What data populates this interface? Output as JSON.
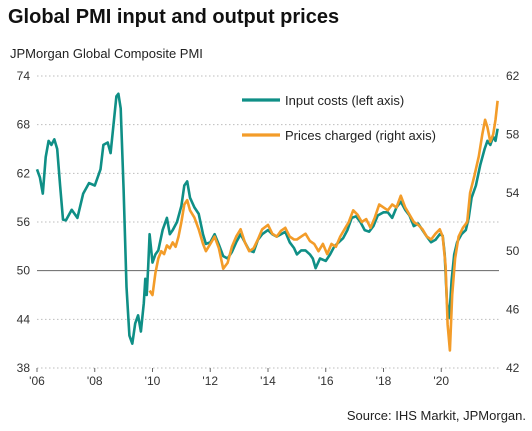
{
  "header": {
    "title": "Global PMI input and output prices",
    "subtitle": "JPMorgan  Global  Composite  PMI"
  },
  "footer": {
    "source": "Source: IHS Markit, JPMorgan."
  },
  "chart_data": {
    "type": "line",
    "title": "Global PMI input and output prices",
    "subtitle": "JPMorgan  Global  Composite  PMI",
    "x_range": [
      2006,
      2022
    ],
    "x_ticks": [
      "'06",
      "'08",
      "'10",
      "'12",
      "'14",
      "'16",
      "'18",
      "'20"
    ],
    "x_tick_values": [
      2006,
      2008,
      2010,
      2012,
      2014,
      2016,
      2018,
      2020
    ],
    "y_left": {
      "range": [
        38,
        74
      ],
      "ticks": [
        38,
        44,
        50,
        56,
        62,
        68,
        74
      ]
    },
    "y_right": {
      "range": [
        42,
        62
      ],
      "ticks": [
        42,
        46,
        50,
        54,
        58,
        62
      ]
    },
    "reference_line": {
      "axis": "left",
      "value": 50
    },
    "grid": "horizontal dotted",
    "legend": {
      "placement": "top-right"
    },
    "series": [
      {
        "name": "Input costs (left axis)",
        "axis": "left",
        "color": "#0f8f86",
        "points": [
          [
            2006.0,
            62.5
          ],
          [
            2006.1,
            61.5
          ],
          [
            2006.2,
            59.5
          ],
          [
            2006.3,
            64
          ],
          [
            2006.4,
            66
          ],
          [
            2006.5,
            65.5
          ],
          [
            2006.6,
            66.2
          ],
          [
            2006.7,
            65
          ],
          [
            2006.8,
            60.5
          ],
          [
            2006.9,
            56.3
          ],
          [
            2007.0,
            56.2
          ],
          [
            2007.2,
            57.5
          ],
          [
            2007.4,
            56.5
          ],
          [
            2007.6,
            59.5
          ],
          [
            2007.8,
            60.8
          ],
          [
            2008.0,
            60.5
          ],
          [
            2008.2,
            62.5
          ],
          [
            2008.3,
            65.5
          ],
          [
            2008.45,
            65.8
          ],
          [
            2008.55,
            64.5
          ],
          [
            2008.65,
            68
          ],
          [
            2008.75,
            71.5
          ],
          [
            2008.82,
            71.8
          ],
          [
            2008.9,
            70
          ],
          [
            2009.0,
            60
          ],
          [
            2009.1,
            48
          ],
          [
            2009.2,
            42
          ],
          [
            2009.3,
            41
          ],
          [
            2009.4,
            43.5
          ],
          [
            2009.5,
            44.5
          ],
          [
            2009.6,
            42.5
          ],
          [
            2009.7,
            46
          ],
          [
            2009.75,
            49
          ],
          [
            2009.8,
            47
          ],
          [
            2009.85,
            50.5
          ],
          [
            2009.9,
            54.5
          ],
          [
            2010.0,
            51
          ],
          [
            2010.1,
            52
          ],
          [
            2010.2,
            52.5
          ],
          [
            2010.35,
            55
          ],
          [
            2010.5,
            56.5
          ],
          [
            2010.6,
            54.5
          ],
          [
            2010.7,
            55
          ],
          [
            2010.85,
            56
          ],
          [
            2011.0,
            58
          ],
          [
            2011.1,
            60.5
          ],
          [
            2011.2,
            61
          ],
          [
            2011.3,
            59
          ],
          [
            2011.45,
            57.8
          ],
          [
            2011.6,
            57
          ],
          [
            2011.75,
            54.5
          ],
          [
            2011.85,
            53.3
          ],
          [
            2012.0,
            53.5
          ],
          [
            2012.15,
            54.5
          ],
          [
            2012.3,
            53.2
          ],
          [
            2012.45,
            51.8
          ],
          [
            2012.6,
            51.5
          ],
          [
            2012.75,
            52.3
          ],
          [
            2012.9,
            53.5
          ],
          [
            2013.05,
            54.5
          ],
          [
            2013.2,
            53.5
          ],
          [
            2013.35,
            52.5
          ],
          [
            2013.5,
            52.3
          ],
          [
            2013.65,
            53.8
          ],
          [
            2013.8,
            54.5
          ],
          [
            2014.0,
            55
          ],
          [
            2014.15,
            54.5
          ],
          [
            2014.3,
            54.2
          ],
          [
            2014.45,
            54.5
          ],
          [
            2014.6,
            54.8
          ],
          [
            2014.75,
            53.5
          ],
          [
            2014.9,
            52.8
          ],
          [
            2015.0,
            52
          ],
          [
            2015.15,
            52.5
          ],
          [
            2015.3,
            52.5
          ],
          [
            2015.45,
            52
          ],
          [
            2015.55,
            51.5
          ],
          [
            2015.65,
            50.3
          ],
          [
            2015.8,
            51.5
          ],
          [
            2016.0,
            51.2
          ],
          [
            2016.15,
            52
          ],
          [
            2016.3,
            53
          ],
          [
            2016.45,
            53.5
          ],
          [
            2016.6,
            54
          ],
          [
            2016.75,
            55
          ],
          [
            2016.9,
            56.5
          ],
          [
            2017.05,
            56.7
          ],
          [
            2017.2,
            56
          ],
          [
            2017.35,
            55
          ],
          [
            2017.5,
            54.8
          ],
          [
            2017.65,
            55.5
          ],
          [
            2017.8,
            56.8
          ],
          [
            2018.0,
            57.2
          ],
          [
            2018.15,
            57.2
          ],
          [
            2018.3,
            56.5
          ],
          [
            2018.45,
            57.8
          ],
          [
            2018.6,
            58.5
          ],
          [
            2018.75,
            57.5
          ],
          [
            2018.9,
            56.8
          ],
          [
            2019.05,
            55.5
          ],
          [
            2019.2,
            55.8
          ],
          [
            2019.35,
            55
          ],
          [
            2019.5,
            54.2
          ],
          [
            2019.65,
            53.5
          ],
          [
            2019.8,
            53.8
          ],
          [
            2019.95,
            54.5
          ],
          [
            2020.05,
            54.3
          ],
          [
            2020.12,
            52
          ],
          [
            2020.2,
            46
          ],
          [
            2020.28,
            44.2
          ],
          [
            2020.36,
            48.8
          ],
          [
            2020.45,
            52
          ],
          [
            2020.55,
            53.5
          ],
          [
            2020.7,
            54.5
          ],
          [
            2020.85,
            55
          ],
          [
            2020.95,
            56.5
          ],
          [
            2021.05,
            59
          ],
          [
            2021.2,
            60.5
          ],
          [
            2021.35,
            63
          ],
          [
            2021.5,
            65
          ],
          [
            2021.6,
            66
          ],
          [
            2021.7,
            65.5
          ],
          [
            2021.8,
            66.5
          ],
          [
            2021.88,
            66
          ],
          [
            2021.95,
            67.5
          ]
        ]
      },
      {
        "name": "Prices charged (right axis)",
        "axis": "right",
        "color": "#f39c29",
        "points": [
          [
            2009.9,
            47.3
          ],
          [
            2010.0,
            47
          ],
          [
            2010.1,
            48.5
          ],
          [
            2010.2,
            49.5
          ],
          [
            2010.3,
            50
          ],
          [
            2010.4,
            49.8
          ],
          [
            2010.5,
            50.4
          ],
          [
            2010.6,
            50.2
          ],
          [
            2010.7,
            50.6
          ],
          [
            2010.8,
            50.3
          ],
          [
            2010.9,
            51
          ],
          [
            2011.0,
            52
          ],
          [
            2011.1,
            53.2
          ],
          [
            2011.2,
            53.5
          ],
          [
            2011.3,
            52.8
          ],
          [
            2011.45,
            52.3
          ],
          [
            2011.6,
            51.5
          ],
          [
            2011.75,
            50.5
          ],
          [
            2011.85,
            50
          ],
          [
            2012.0,
            50.5
          ],
          [
            2012.15,
            51
          ],
          [
            2012.3,
            50.2
          ],
          [
            2012.45,
            48.8
          ],
          [
            2012.6,
            49.2
          ],
          [
            2012.75,
            50.3
          ],
          [
            2012.9,
            51
          ],
          [
            2013.05,
            51.5
          ],
          [
            2013.2,
            50.6
          ],
          [
            2013.35,
            50
          ],
          [
            2013.5,
            50.2
          ],
          [
            2013.65,
            50.8
          ],
          [
            2013.8,
            51.5
          ],
          [
            2014.0,
            51.8
          ],
          [
            2014.15,
            51.2
          ],
          [
            2014.3,
            51
          ],
          [
            2014.45,
            51.4
          ],
          [
            2014.6,
            51.6
          ],
          [
            2014.75,
            51
          ],
          [
            2014.9,
            50.8
          ],
          [
            2015.0,
            50.8
          ],
          [
            2015.15,
            51
          ],
          [
            2015.3,
            51.2
          ],
          [
            2015.45,
            50.7
          ],
          [
            2015.6,
            50.5
          ],
          [
            2015.75,
            50
          ],
          [
            2015.9,
            50.5
          ],
          [
            2016.05,
            49.8
          ],
          [
            2016.2,
            50.5
          ],
          [
            2016.35,
            50.3
          ],
          [
            2016.5,
            51
          ],
          [
            2016.65,
            51.5
          ],
          [
            2016.8,
            52
          ],
          [
            2016.95,
            52.8
          ],
          [
            2017.1,
            52.5
          ],
          [
            2017.25,
            52
          ],
          [
            2017.4,
            52.2
          ],
          [
            2017.55,
            51.6
          ],
          [
            2017.7,
            52.3
          ],
          [
            2017.85,
            53.2
          ],
          [
            2018.0,
            53
          ],
          [
            2018.15,
            52.8
          ],
          [
            2018.3,
            53.2
          ],
          [
            2018.45,
            53
          ],
          [
            2018.6,
            53.8
          ],
          [
            2018.75,
            53
          ],
          [
            2018.9,
            52.5
          ],
          [
            2019.05,
            52
          ],
          [
            2019.2,
            51.8
          ],
          [
            2019.35,
            51.5
          ],
          [
            2019.5,
            51
          ],
          [
            2019.65,
            50.8
          ],
          [
            2019.8,
            51.2
          ],
          [
            2019.95,
            51.5
          ],
          [
            2020.05,
            51
          ],
          [
            2020.15,
            49
          ],
          [
            2020.22,
            45
          ],
          [
            2020.3,
            43.2
          ],
          [
            2020.38,
            47
          ],
          [
            2020.48,
            49.5
          ],
          [
            2020.6,
            51
          ],
          [
            2020.75,
            51.6
          ],
          [
            2020.9,
            52
          ],
          [
            2021.0,
            54
          ],
          [
            2021.15,
            55.2
          ],
          [
            2021.3,
            56.5
          ],
          [
            2021.42,
            58
          ],
          [
            2021.52,
            59
          ],
          [
            2021.6,
            58.5
          ],
          [
            2021.7,
            57.5
          ],
          [
            2021.8,
            58
          ],
          [
            2021.88,
            59
          ],
          [
            2021.95,
            60.3
          ]
        ]
      }
    ]
  }
}
